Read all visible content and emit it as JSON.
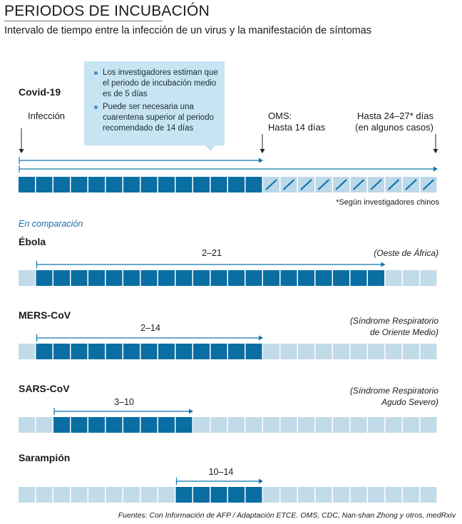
{
  "header": {
    "title": "PERIODOS DE INCUBACIÓN",
    "subtitle": "Intervalo de tiempo entre la infección de un virus y la manifestación de síntomas"
  },
  "callout": {
    "bullets": [
      "Los investigadores estiman que el periodo de incubación medio es de 5 días",
      "Puede ser necesaria una cuarentena superior al periodo recomendado de 14 días"
    ]
  },
  "covid": {
    "name": "Covid-19",
    "marker_infection": "Infección",
    "marker_oms": [
      "OMS:",
      "Hasta 14 días"
    ],
    "marker_extended": [
      "Hasta 24–27* días",
      "(en algunos casos)"
    ],
    "footnote": "*Según investigadores chinos"
  },
  "comparison_label": "En comparación",
  "sources": "Fuentes: Con Información de AFP / Adaptación ETCE. OMS, CDC, Nan-shan Zhong y otros, medRxiv",
  "chart_data": {
    "type": "range-bar",
    "title": "PERIODOS DE INCUBACIÓN",
    "unit": "días",
    "x_range": [
      1,
      24
    ],
    "series": [
      {
        "name": "Covid-19",
        "start": 1,
        "end": 14,
        "extended_end": 24,
        "label": "",
        "region": []
      },
      {
        "name": "Ébola",
        "start": 2,
        "end": 21,
        "label": "2–21",
        "region": [
          "(Oeste de África)"
        ]
      },
      {
        "name": "MERS-CoV",
        "start": 2,
        "end": 14,
        "label": "2–14",
        "region": [
          "(Síndrome Respiratorio",
          "de Oriente Medio)"
        ]
      },
      {
        "name": "SARS-CoV",
        "start": 3,
        "end": 10,
        "label": "3–10",
        "region": [
          "(Síndrome Respiratorio",
          "Agudo Severo)"
        ]
      },
      {
        "name": "Sarampión",
        "start": 10,
        "end": 14,
        "label": "10–14",
        "region": []
      }
    ]
  },
  "colors": {
    "dark": "#0a6ea2",
    "light": "#c2dbe9",
    "hatch": "#bcd8e8",
    "hatch_line": "#0f74ad",
    "arrow": "#0f74ad"
  }
}
